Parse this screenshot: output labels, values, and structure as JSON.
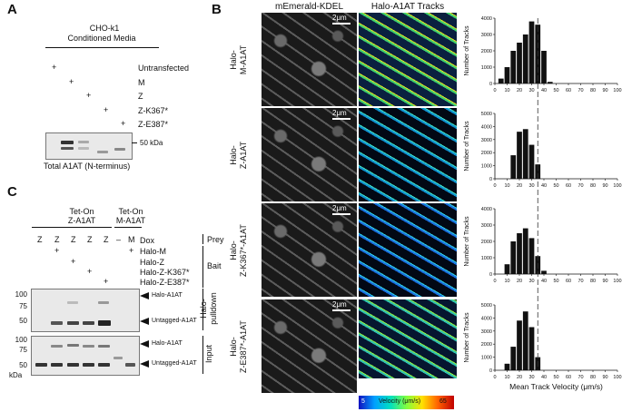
{
  "panel_a": {
    "letter": "A",
    "header_line1": "CHO-k1",
    "header_line2": "Conditioned Media",
    "rows": [
      "Untransfected",
      "M",
      "Z",
      "Z-K367*",
      "Z-E387*"
    ],
    "plus": "+",
    "mw_marker": "50 kDa",
    "caption": "Total A1AT (N-terminus)"
  },
  "panel_b": {
    "letter": "B",
    "col_kdel": "mEmerald-KDEL",
    "col_tracks": "Halo-A1AT Tracks",
    "scale_bar": "2μm",
    "row_labels": [
      [
        "Halo-",
        "M-A1AT"
      ],
      [
        "Halo-",
        "Z-A1AT"
      ],
      [
        "Halo-",
        "Z-K367*-A1AT"
      ],
      [
        "Halo-",
        "Z-E387*-A1AT"
      ]
    ],
    "colorbar": {
      "min": "5",
      "label": "Velocity (μm/s)",
      "max": "65"
    }
  },
  "panel_c": {
    "letter": "C",
    "group1_line1": "Tet-On",
    "group1_line2": "Z-A1AT",
    "group2_line1": "Tet-On",
    "group2_line2": "M-A1AT",
    "lanes": [
      "Z",
      "Z",
      "Z",
      "Z",
      "Z",
      "–",
      "M"
    ],
    "dox_label": "Dox",
    "bait_rows": [
      "Halo-M",
      "Halo-Z",
      "Halo-Z-K367*",
      "Halo-Z-E387*"
    ],
    "prey": "Prey",
    "bait": "Bait",
    "pulldown_line1": "Halo-",
    "pulldown_line2": "pulldown",
    "input": "Input",
    "halo_a1at": "Halo-A1AT",
    "untagged": "Untagged-A1AT",
    "mw_top": [
      "100",
      "75",
      "50"
    ],
    "mw_bottom": [
      "100",
      "75",
      "50"
    ],
    "kda": "kDa",
    "plus": "+"
  },
  "chart_data": [
    {
      "type": "bar",
      "categories": [
        "5",
        "10",
        "15",
        "20",
        "25",
        "30",
        "35",
        "40",
        "45",
        "50",
        "55",
        "60"
      ],
      "values": [
        300,
        1000,
        2000,
        2500,
        3000,
        3800,
        3600,
        2000,
        100,
        0,
        0,
        0
      ],
      "ylabel": "Number of Tracks",
      "xlabel": "",
      "yticks": [
        "0",
        "1000",
        "2000",
        "3000",
        "4000"
      ],
      "xticks": [
        "0",
        "10",
        "20",
        "30",
        "40",
        "50",
        "60",
        "70",
        "80",
        "90",
        "100"
      ],
      "ylim": [
        0,
        4000
      ],
      "xlim": [
        0,
        100
      ],
      "dashed_line": 35
    },
    {
      "type": "bar",
      "categories": [
        "5",
        "10",
        "15",
        "20",
        "25",
        "30",
        "35",
        "40",
        "45",
        "50",
        "55",
        "60"
      ],
      "values": [
        0,
        0,
        1800,
        3600,
        3800,
        2600,
        1100,
        0,
        0,
        0,
        0,
        0
      ],
      "ylabel": "Number of Tracks",
      "xlabel": "",
      "yticks": [
        "0",
        "1000",
        "2000",
        "3000",
        "4000",
        "5000"
      ],
      "xticks": [
        "0",
        "10",
        "20",
        "30",
        "40",
        "50",
        "60",
        "70",
        "80",
        "90",
        "100"
      ],
      "ylim": [
        0,
        5000
      ],
      "xlim": [
        0,
        100
      ],
      "dashed_line": 35
    },
    {
      "type": "bar",
      "categories": [
        "5",
        "10",
        "15",
        "20",
        "25",
        "30",
        "35",
        "40",
        "45",
        "50",
        "55",
        "60"
      ],
      "values": [
        0,
        600,
        2000,
        2500,
        2800,
        2200,
        1100,
        200,
        0,
        0,
        0,
        0
      ],
      "ylabel": "Number of Tracks",
      "xlabel": "",
      "yticks": [
        "0",
        "1000",
        "2000",
        "3000",
        "4000"
      ],
      "xticks": [
        "0",
        "10",
        "20",
        "30",
        "40",
        "50",
        "60",
        "70",
        "80",
        "90",
        "100"
      ],
      "ylim": [
        0,
        4000
      ],
      "xlim": [
        0,
        100
      ],
      "dashed_line": 35
    },
    {
      "type": "bar",
      "categories": [
        "5",
        "10",
        "15",
        "20",
        "25",
        "30",
        "35",
        "40",
        "45",
        "50",
        "55",
        "60"
      ],
      "values": [
        0,
        500,
        1800,
        3800,
        4500,
        3300,
        1000,
        0,
        0,
        0,
        0,
        0
      ],
      "ylabel": "Number of Tracks",
      "xlabel": "Mean Track Velocity (μm/s)",
      "yticks": [
        "0",
        "1000",
        "2000",
        "3000",
        "4000",
        "5000"
      ],
      "xticks": [
        "0",
        "10",
        "20",
        "30",
        "40",
        "50",
        "60",
        "70",
        "80",
        "90",
        "100"
      ],
      "ylim": [
        0,
        5000
      ],
      "xlim": [
        0,
        100
      ],
      "dashed_line": 35
    }
  ]
}
